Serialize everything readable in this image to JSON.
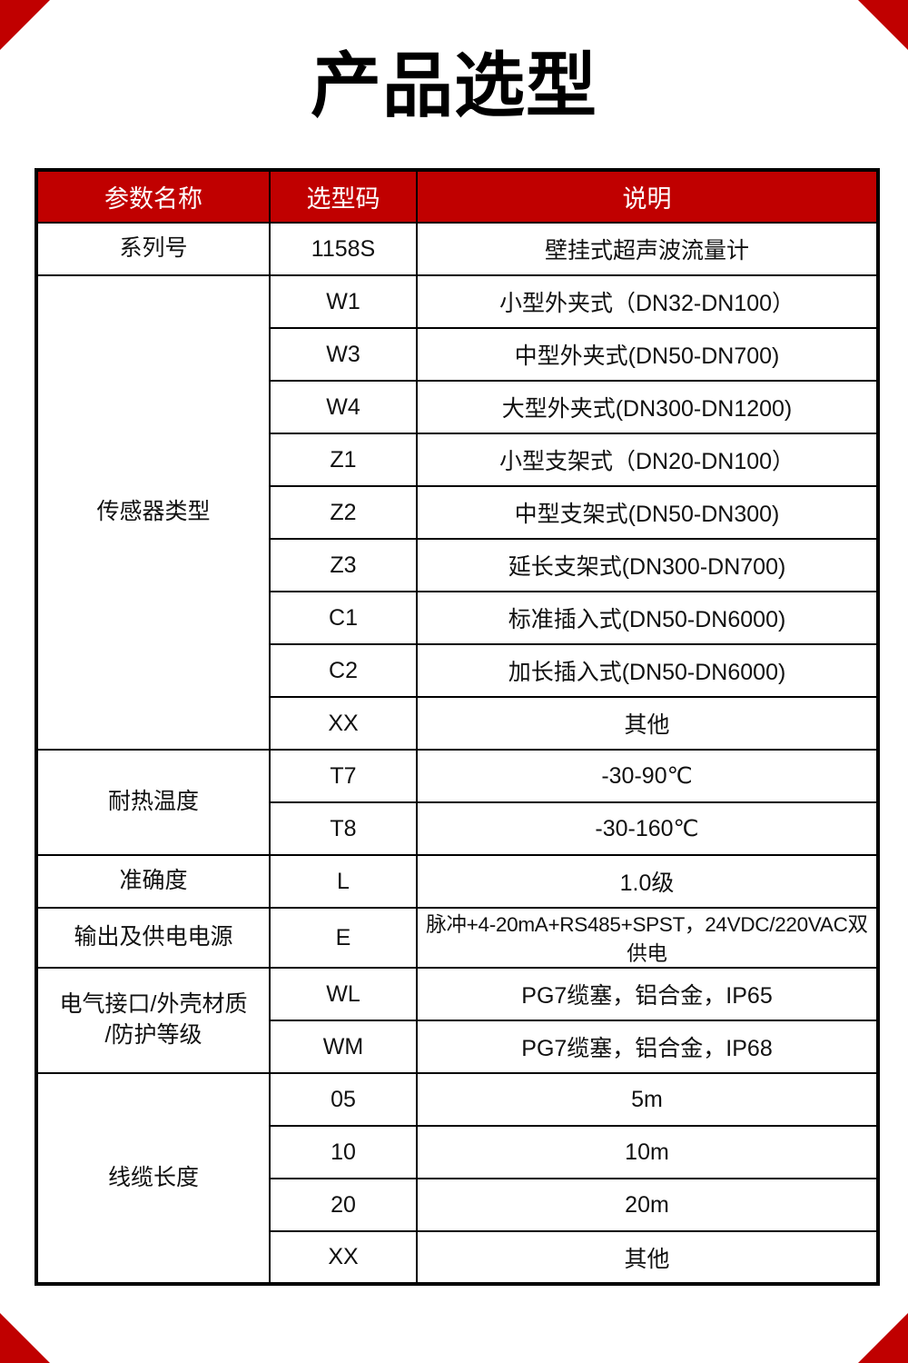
{
  "page": {
    "title": "产品选型",
    "accent_color": "#c00000"
  },
  "table": {
    "headers": [
      "参数名称",
      "选型码",
      "说明"
    ],
    "groups": [
      {
        "param": "系列号",
        "rows": [
          {
            "code": "1158S",
            "desc": "壁挂式超声波流量计"
          }
        ]
      },
      {
        "param": "传感器类型",
        "rows": [
          {
            "code": "W1",
            "desc": "小型外夹式（DN32-DN100）"
          },
          {
            "code": "W3",
            "desc": "中型外夹式(DN50-DN700)"
          },
          {
            "code": "W4",
            "desc": "大型外夹式(DN300-DN1200)"
          },
          {
            "code": "Z1",
            "desc": "小型支架式（DN20-DN100）"
          },
          {
            "code": "Z2",
            "desc": "中型支架式(DN50-DN300)"
          },
          {
            "code": "Z3",
            "desc": "延长支架式(DN300-DN700)"
          },
          {
            "code": "C1",
            "desc": "标准插入式(DN50-DN6000)"
          },
          {
            "code": "C2",
            "desc": "加长插入式(DN50-DN6000)"
          },
          {
            "code": "XX",
            "desc": "其他"
          }
        ]
      },
      {
        "param": "耐热温度",
        "rows": [
          {
            "code": "T7",
            "desc": "-30-90℃"
          },
          {
            "code": "T8",
            "desc": "-30-160℃"
          }
        ]
      },
      {
        "param": "准确度",
        "rows": [
          {
            "code": "L",
            "desc": "1.0级"
          }
        ]
      },
      {
        "param": "输出及供电电源",
        "rows": [
          {
            "code": "E",
            "desc": "脉冲+4-20mA+RS485+SPST，24VDC/220VAC双供电",
            "small": true
          }
        ]
      },
      {
        "param": "电气接口/外壳材质\n/防护等级",
        "rows": [
          {
            "code": "WL",
            "desc": "PG7缆塞，铝合金，IP65"
          },
          {
            "code": "WM",
            "desc": "PG7缆塞，铝合金，IP68"
          }
        ]
      },
      {
        "param": "线缆长度",
        "rows": [
          {
            "code": "05",
            "desc": "5m"
          },
          {
            "code": "10",
            "desc": "10m"
          },
          {
            "code": "20",
            "desc": "20m"
          },
          {
            "code": "XX",
            "desc": "其他"
          }
        ]
      }
    ]
  }
}
